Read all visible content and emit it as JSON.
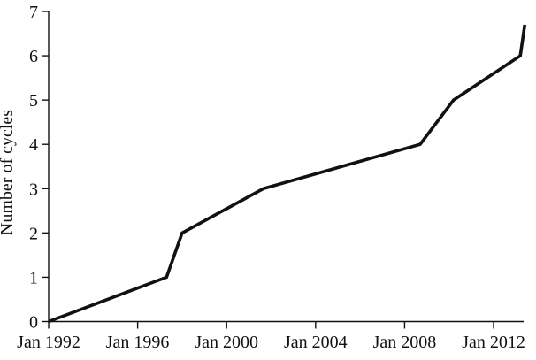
{
  "figure": {
    "background": "#ffffff",
    "line_color": "#111111",
    "axis_color": "#111111",
    "text_color": "#111111"
  },
  "chart_data": {
    "type": "line",
    "title": "",
    "xlabel": "",
    "ylabel": "Number of cycles",
    "grid": false,
    "legend": "none",
    "xlim": [
      1992.0,
      2013.35
    ],
    "ylim": [
      0,
      7
    ],
    "x_tick_years": [
      1992,
      1996,
      2000,
      2004,
      2008,
      2012
    ],
    "x_tick_labels": [
      "Jan 1992",
      "Jan 1996",
      "Jan 2000",
      "Jan 2004",
      "Jan 2008",
      "Jan 2012"
    ],
    "y_ticks": [
      0,
      1,
      2,
      3,
      4,
      5,
      6,
      7
    ],
    "series": [
      {
        "name": "Number of cycles",
        "x": [
          1992.0,
          1997.3,
          1998.0,
          2001.65,
          2008.7,
          2010.2,
          2013.2,
          2013.4
        ],
        "y": [
          0,
          1,
          2,
          3,
          4,
          5,
          6,
          6.7
        ]
      }
    ]
  }
}
